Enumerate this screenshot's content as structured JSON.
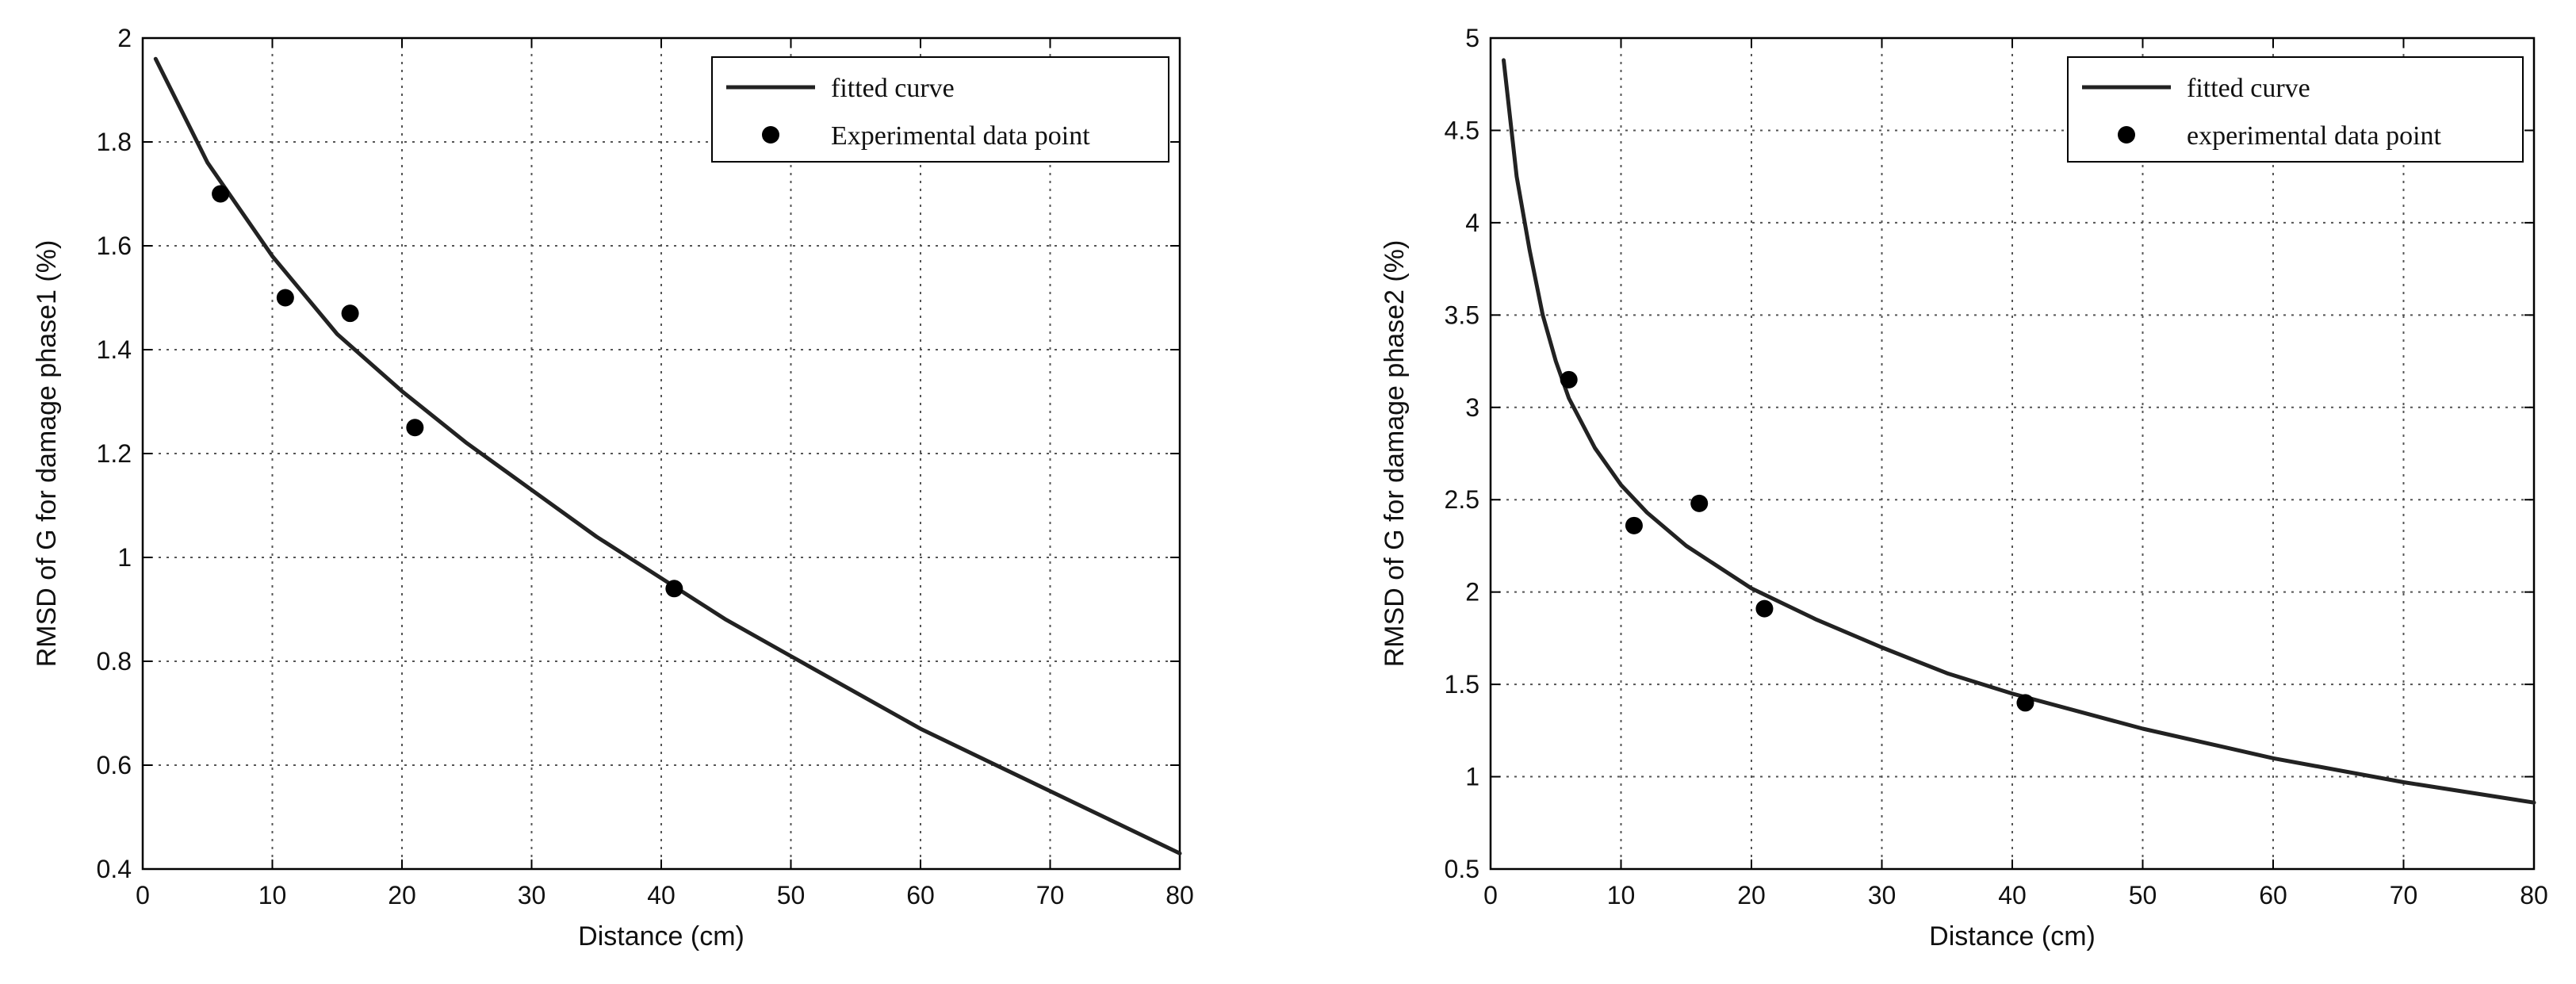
{
  "chart_data": [
    {
      "type": "scatter",
      "title": "",
      "xlabel": "Distance (cm)",
      "ylabel": "RMSD of G for damage phase1 (%)",
      "xlim": [
        0,
        80
      ],
      "ylim": [
        0.4,
        2
      ],
      "xticks": [
        0,
        10,
        20,
        30,
        40,
        50,
        60,
        70,
        80
      ],
      "xtick_labels": [
        "0",
        "10",
        "20",
        "30",
        "40",
        "50",
        "60",
        "70",
        "80"
      ],
      "yticks": [
        0.4,
        0.6,
        0.8,
        1.0,
        1.2,
        1.4,
        1.6,
        1.8,
        2.0
      ],
      "ytick_labels": [
        "0.4",
        "0.6",
        "0.8",
        "1",
        "1.2",
        "1.4",
        "1.6",
        "1.8",
        "2"
      ],
      "grid": true,
      "legend_position": "top-right",
      "series": [
        {
          "name": "fitted curve",
          "kind": "line",
          "x": [
            1,
            5,
            10,
            15,
            20,
            25,
            30,
            35,
            40,
            45,
            50,
            55,
            60,
            65,
            70,
            75,
            80
          ],
          "y": [
            1.96,
            1.76,
            1.58,
            1.43,
            1.32,
            1.22,
            1.13,
            1.04,
            0.96,
            0.88,
            0.81,
            0.74,
            0.67,
            0.61,
            0.55,
            0.49,
            0.43
          ]
        },
        {
          "name": "Experimental data point",
          "kind": "points",
          "x": [
            6,
            11,
            16,
            21,
            41
          ],
          "y": [
            1.7,
            1.5,
            1.47,
            1.25,
            0.94
          ]
        }
      ]
    },
    {
      "type": "scatter",
      "title": "",
      "xlabel": "Distance (cm)",
      "ylabel": "RMSD of G for damage phase2 (%)",
      "xlim": [
        0,
        80
      ],
      "ylim": [
        0.5,
        5
      ],
      "xticks": [
        0,
        10,
        20,
        30,
        40,
        50,
        60,
        70,
        80
      ],
      "xtick_labels": [
        "0",
        "10",
        "20",
        "30",
        "40",
        "50",
        "60",
        "70",
        "80"
      ],
      "yticks": [
        0.5,
        1,
        1.5,
        2,
        2.5,
        3,
        3.5,
        4,
        4.5,
        5
      ],
      "ytick_labels": [
        "0.5",
        "1",
        "1.5",
        "2",
        "2.5",
        "3",
        "3.5",
        "4",
        "4.5",
        "5"
      ],
      "grid": true,
      "legend_position": "top-right",
      "series": [
        {
          "name": "fitted curve",
          "kind": "line",
          "x": [
            1,
            2,
            3,
            4,
            5,
            6,
            8,
            10,
            12,
            15,
            20,
            25,
            30,
            35,
            40,
            50,
            60,
            70,
            80
          ],
          "y": [
            4.88,
            4.25,
            3.85,
            3.5,
            3.25,
            3.05,
            2.78,
            2.58,
            2.43,
            2.25,
            2.02,
            1.85,
            1.7,
            1.56,
            1.45,
            1.26,
            1.1,
            0.97,
            0.86
          ]
        },
        {
          "name": "experimental data point",
          "kind": "points",
          "x": [
            6,
            11,
            16,
            21,
            41
          ],
          "y": [
            3.15,
            2.36,
            2.48,
            1.91,
            1.4
          ]
        }
      ]
    }
  ]
}
